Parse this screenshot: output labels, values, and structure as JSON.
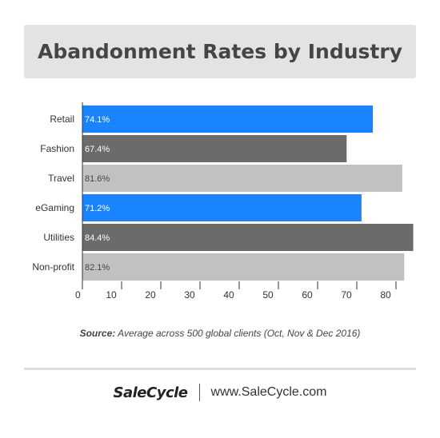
{
  "chart_data": {
    "type": "bar",
    "orientation": "horizontal",
    "title": "Abandonment Rates by Industry",
    "categories": [
      "Retail",
      "Fashion",
      "Travel",
      "eGaming",
      "Utilities",
      "Non-profit"
    ],
    "values": [
      74.1,
      67.4,
      81.6,
      71.2,
      84.4,
      82.1
    ],
    "value_labels": [
      "74.1%",
      "67.4%",
      "81.6%",
      "71.2%",
      "84.4%",
      "82.1%"
    ],
    "bar_colors": [
      "#1a84ff",
      "#6b6b6b",
      "#c1c1c1",
      "#1a84ff",
      "#6b6b6b",
      "#c1c1c1"
    ],
    "label_colors": [
      "#ffffff",
      "#ffffff",
      "#444444",
      "#ffffff",
      "#ffffff",
      "#444444"
    ],
    "xticks": [
      0,
      10,
      20,
      30,
      40,
      50,
      60,
      70,
      80
    ],
    "xlim": [
      0,
      85
    ],
    "xlabel": "",
    "ylabel": "",
    "grid": false,
    "legend": "none"
  },
  "source": {
    "label": "Source:",
    "text": "Average across 500 global clients (Oct, Nov & Dec 2016)"
  },
  "footer": {
    "brand": "SaleCycle",
    "url": "www.SaleCycle.com"
  }
}
